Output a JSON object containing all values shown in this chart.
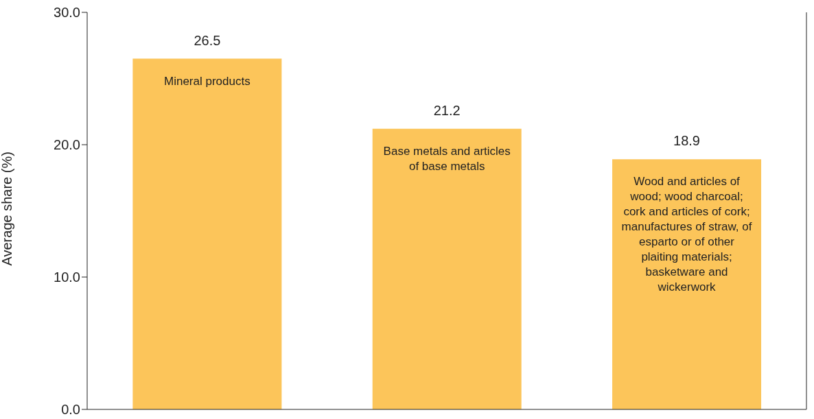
{
  "chart_data": {
    "type": "bar",
    "ylabel": "Average share (%)",
    "categories": [
      "Mineral products",
      "Base metals and articles of base metals",
      "Wood and articles of wood; wood charcoal; cork and articles of cork; manufactures of straw, of esparto or of other plaiting materials; basketware and wickerwork"
    ],
    "values": [
      26.5,
      21.2,
      18.9
    ],
    "color": "#fcc55a",
    "ylim": [
      0,
      30
    ],
    "yticks": [
      {
        "value": 0,
        "label": "0.0"
      },
      {
        "value": 10,
        "label": "10.0"
      },
      {
        "value": 20,
        "label": "20.0"
      },
      {
        "value": 30,
        "label": "30.0"
      }
    ],
    "data_labels": true,
    "grid": false,
    "legend": false
  }
}
